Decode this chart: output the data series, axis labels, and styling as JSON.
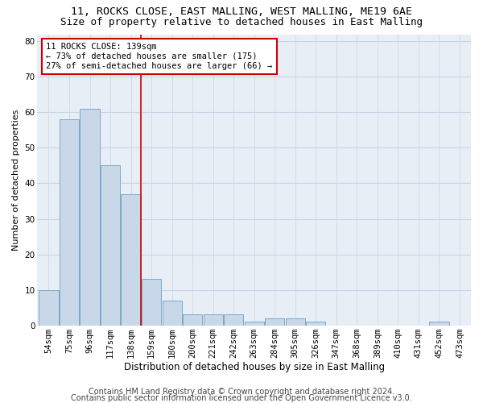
{
  "title1": "11, ROCKS CLOSE, EAST MALLING, WEST MALLING, ME19 6AE",
  "title2": "Size of property relative to detached houses in East Malling",
  "xlabel": "Distribution of detached houses by size in East Malling",
  "ylabel": "Number of detached properties",
  "categories": [
    "54sqm",
    "75sqm",
    "96sqm",
    "117sqm",
    "138sqm",
    "159sqm",
    "180sqm",
    "200sqm",
    "221sqm",
    "242sqm",
    "263sqm",
    "284sqm",
    "305sqm",
    "326sqm",
    "347sqm",
    "368sqm",
    "389sqm",
    "410sqm",
    "431sqm",
    "452sqm",
    "473sqm"
  ],
  "values": [
    10,
    58,
    61,
    45,
    37,
    13,
    7,
    3,
    3,
    3,
    1,
    2,
    2,
    1,
    0,
    0,
    0,
    0,
    0,
    1,
    0
  ],
  "bar_color": "#c8d8e8",
  "bar_edge_color": "#7aaac8",
  "vline_x": 4.5,
  "vline_color": "#cc0000",
  "annotation_text": "11 ROCKS CLOSE: 139sqm\n← 73% of detached houses are smaller (175)\n27% of semi-detached houses are larger (66) →",
  "annotation_box_color": "#ffffff",
  "annotation_box_edge": "#cc0000",
  "ylim": [
    0,
    82
  ],
  "yticks": [
    0,
    10,
    20,
    30,
    40,
    50,
    60,
    70,
    80
  ],
  "grid_color": "#c8d4e4",
  "bg_color": "#e8eef6",
  "footer1": "Contains HM Land Registry data © Crown copyright and database right 2024.",
  "footer2": "Contains public sector information licensed under the Open Government Licence v3.0.",
  "title1_fontsize": 9.5,
  "title2_fontsize": 9,
  "xlabel_fontsize": 8.5,
  "ylabel_fontsize": 8,
  "tick_fontsize": 7.5,
  "annotation_fontsize": 7.5,
  "footer_fontsize": 7
}
